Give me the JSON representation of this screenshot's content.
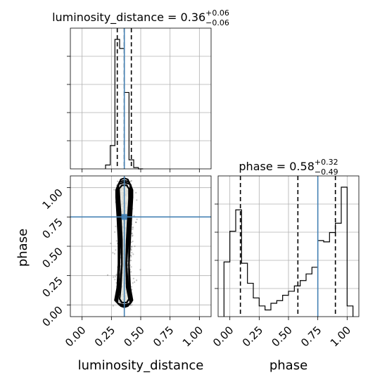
{
  "chart_data": {
    "type": "corner",
    "parameters": [
      "luminosity_distance",
      "phase"
    ],
    "axis_labels": {
      "x_bottom_left": "luminosity_distance",
      "x_bottom_right": "phase",
      "y_lower_left": "phase"
    },
    "titles": {
      "luminosity_distance": {
        "name": "luminosity_distance",
        "median": "0.36",
        "plus": "+0.06",
        "minus": "−0.06"
      },
      "phase": {
        "name": "phase",
        "median": "0.58",
        "plus": "+0.32",
        "minus": "−0.49"
      }
    },
    "ranges": {
      "luminosity_distance": [
        -0.1,
        1.1
      ],
      "phase": [
        -0.1,
        1.1
      ]
    },
    "ticks": [
      0.0,
      0.25,
      0.5,
      0.75,
      1.0
    ],
    "tick_labels": [
      "0.00",
      "0.25",
      "0.50",
      "0.75",
      "1.00"
    ],
    "truth": {
      "luminosity_distance": 0.36,
      "phase": 0.75
    },
    "truth_color": "#4682b4",
    "grid": true,
    "histograms": {
      "luminosity_distance": {
        "bin_edges": [
          0.2,
          0.24,
          0.28,
          0.32,
          0.36,
          0.4,
          0.44,
          0.48,
          0.52
        ],
        "counts": [
          0.03,
          0.18,
          1.0,
          0.93,
          0.59,
          0.07,
          0.01,
          0.0
        ],
        "quantiles": [
          0.3,
          0.36,
          0.42
        ]
      },
      "phase": {
        "bin_edges": [
          -0.05,
          0.0,
          0.05,
          0.1,
          0.15,
          0.2,
          0.25,
          0.3,
          0.35,
          0.4,
          0.45,
          0.5,
          0.55,
          0.6,
          0.65,
          0.7,
          0.75,
          0.8,
          0.85,
          0.9,
          0.95,
          1.0,
          1.05
        ],
        "counts": [
          0.41,
          0.64,
          0.8,
          0.4,
          0.25,
          0.14,
          0.08,
          0.05,
          0.1,
          0.12,
          0.16,
          0.19,
          0.23,
          0.27,
          0.32,
          0.37,
          0.57,
          0.56,
          0.63,
          0.7,
          0.97,
          0.08
        ],
        "quantiles": [
          0.09,
          0.58,
          0.9
        ]
      }
    },
    "density_2d": {
      "x_param": "luminosity_distance",
      "y_param": "phase",
      "contour_levels": [
        [
          [
            0.31,
            1.02
          ],
          [
            0.33,
            1.07
          ],
          [
            0.36,
            1.08
          ],
          [
            0.39,
            1.07
          ],
          [
            0.41,
            1.02
          ],
          [
            0.41,
            0.95
          ],
          [
            0.4,
            0.75
          ],
          [
            0.39,
            0.55
          ],
          [
            0.38,
            0.35
          ],
          [
            0.39,
            0.15
          ],
          [
            0.41,
            0.02
          ],
          [
            0.39,
            -0.01
          ],
          [
            0.36,
            -0.02
          ],
          [
            0.33,
            -0.01
          ],
          [
            0.3,
            0.02
          ],
          [
            0.32,
            0.15
          ],
          [
            0.34,
            0.35
          ],
          [
            0.33,
            0.55
          ],
          [
            0.32,
            0.75
          ],
          [
            0.31,
            0.95
          ]
        ],
        [
          [
            0.3,
            1.0
          ],
          [
            0.32,
            1.05
          ],
          [
            0.36,
            1.06
          ],
          [
            0.4,
            1.05
          ],
          [
            0.42,
            1.0
          ],
          [
            0.42,
            0.94
          ],
          [
            0.41,
            0.75
          ],
          [
            0.4,
            0.55
          ],
          [
            0.4,
            0.35
          ],
          [
            0.4,
            0.15
          ],
          [
            0.42,
            0.03
          ],
          [
            0.4,
            0.0
          ],
          [
            0.36,
            -0.01
          ],
          [
            0.32,
            0.0
          ],
          [
            0.29,
            0.03
          ],
          [
            0.31,
            0.15
          ],
          [
            0.32,
            0.35
          ],
          [
            0.32,
            0.55
          ],
          [
            0.31,
            0.75
          ],
          [
            0.3,
            0.94
          ]
        ],
        [
          [
            0.29,
            0.98
          ],
          [
            0.31,
            1.03
          ],
          [
            0.36,
            1.045
          ],
          [
            0.41,
            1.03
          ],
          [
            0.43,
            0.98
          ],
          [
            0.43,
            0.92
          ],
          [
            0.42,
            0.75
          ],
          [
            0.41,
            0.55
          ],
          [
            0.4,
            0.35
          ],
          [
            0.41,
            0.15
          ],
          [
            0.43,
            0.04
          ],
          [
            0.41,
            0.01
          ],
          [
            0.36,
            0.0
          ],
          [
            0.31,
            0.01
          ],
          [
            0.28,
            0.04
          ],
          [
            0.3,
            0.15
          ],
          [
            0.31,
            0.35
          ],
          [
            0.31,
            0.55
          ],
          [
            0.3,
            0.75
          ],
          [
            0.29,
            0.92
          ]
        ],
        [
          [
            0.315,
            0.99
          ],
          [
            0.34,
            1.02
          ],
          [
            0.38,
            1.02
          ],
          [
            0.4,
            0.99
          ],
          [
            0.4,
            0.9
          ],
          [
            0.39,
            0.75
          ],
          [
            0.38,
            0.55
          ],
          [
            0.375,
            0.35
          ],
          [
            0.38,
            0.15
          ],
          [
            0.4,
            0.05
          ],
          [
            0.38,
            0.02
          ],
          [
            0.34,
            0.02
          ],
          [
            0.32,
            0.05
          ],
          [
            0.33,
            0.15
          ],
          [
            0.34,
            0.35
          ],
          [
            0.34,
            0.55
          ],
          [
            0.33,
            0.75
          ],
          [
            0.32,
            0.9
          ]
        ]
      ]
    }
  }
}
